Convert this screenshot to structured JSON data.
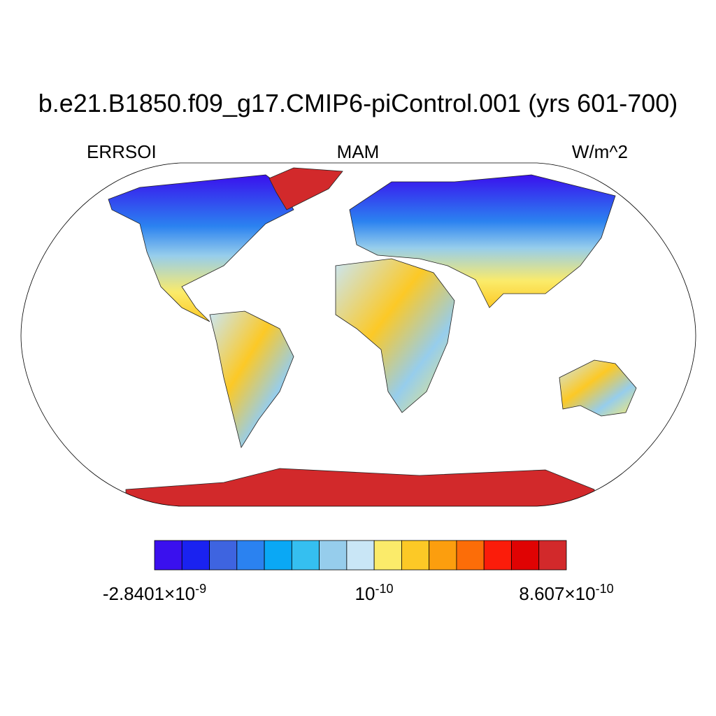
{
  "header": {
    "title": "b.e21.B1850.f09_g17.CMIP6-piControl.001 (yrs 601-700)",
    "left": "ERRSOI",
    "center": "MAM",
    "right": "W/m^2"
  },
  "colorbar": {
    "colors": [
      "#3a10ee",
      "#1a22f0",
      "#3e64e0",
      "#2b82f0",
      "#0aa8f5",
      "#35bff0",
      "#96cdec",
      "#c9e6f6",
      "#fbeb6a",
      "#fcc926",
      "#fc9e0e",
      "#fc6d08",
      "#fb1c0a",
      "#e00303",
      "#d2292b"
    ],
    "labels": [
      {
        "text": "-2.8401×10",
        "superscript": "-9"
      },
      {
        "text": "10",
        "superscript": "-10"
      },
      {
        "text": "8.607×10",
        "superscript": "-10"
      }
    ]
  }
}
